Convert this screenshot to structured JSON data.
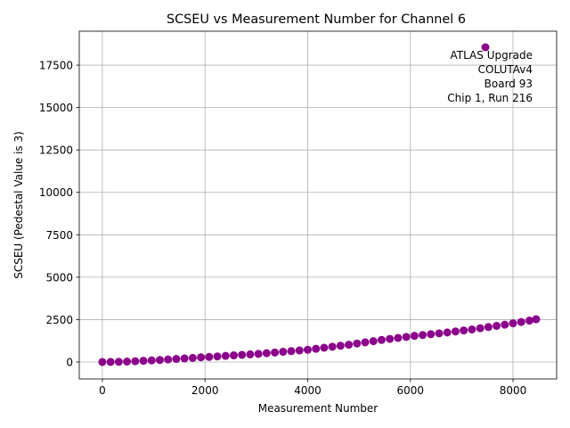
{
  "chart_data": {
    "type": "scatter",
    "title": "SCSEU vs Measurement Number for Channel 6",
    "xlabel": "Measurement Number",
    "ylabel": "SCSEU (Pedestal Value is 3)",
    "xlim": [
      -450,
      8850
    ],
    "ylim": [
      -1000,
      19500
    ],
    "xticks": [
      0,
      2000,
      4000,
      6000,
      8000
    ],
    "xtick_labels": [
      "0",
      "2000",
      "4000",
      "6000",
      "8000"
    ],
    "yticks": [
      0,
      2500,
      5000,
      7500,
      10000,
      12500,
      15000,
      17500
    ],
    "ytick_labels": [
      "0",
      "2500",
      "5000",
      "7500",
      "10000",
      "12500",
      "15000",
      "17500"
    ],
    "grid": true,
    "marker_color": "#8b008b",
    "legend_marker_position": "top-right",
    "annotation": [
      "ATLAS Upgrade",
      "COLUTAv4",
      "Board 93",
      "Chip 1, Run 216"
    ],
    "series": [
      {
        "x": [
          0,
          160,
          320,
          480,
          640,
          800,
          960,
          1120,
          1280,
          1440,
          1600,
          1760,
          1920,
          2080,
          2240,
          2400,
          2560,
          2720,
          2880,
          3040,
          3200,
          3360,
          3520,
          3680,
          3840,
          4000,
          4160,
          4320,
          4480,
          4640,
          4800,
          4960,
          5120,
          5280,
          5440,
          5600,
          5760,
          5920,
          6080,
          6240,
          6400,
          6560,
          6720,
          6880,
          7040,
          7200,
          7360,
          7520,
          7680,
          7840,
          8000,
          8160,
          8320,
          8450
        ],
        "y": [
          0,
          3,
          10,
          25,
          45,
          70,
          95,
          120,
          150,
          180,
          210,
          240,
          275,
          300,
          330,
          360,
          390,
          420,
          450,
          480,
          520,
          560,
          600,
          640,
          680,
          720,
          780,
          840,
          900,
          960,
          1020,
          1090,
          1160,
          1230,
          1300,
          1360,
          1420,
          1480,
          1540,
          1590,
          1640,
          1690,
          1740,
          1800,
          1860,
          1920,
          1990,
          2060,
          2130,
          2200,
          2280,
          2360,
          2440,
          2520
        ]
      }
    ]
  }
}
